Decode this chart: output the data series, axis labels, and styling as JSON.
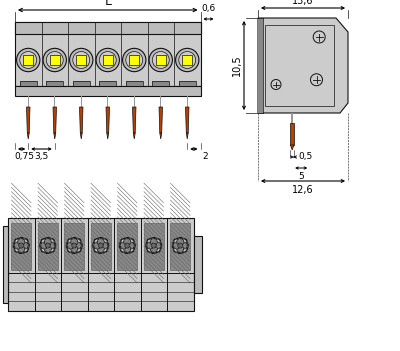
{
  "bg_color": "#ffffff",
  "gray_body": "#aaaaaa",
  "gray_light": "#cccccc",
  "gray_mid": "#bbbbbb",
  "gray_dark": "#888888",
  "gray_darker": "#666666",
  "yellow_fill": "#ffff00",
  "orange_pin": "#b84000",
  "black": "#111111",
  "n_poles": 7,
  "dim_L_label": "L",
  "dim_06": "0,6",
  "dim_136": "13,6",
  "dim_105": "10,5",
  "dim_075": "0,75",
  "dim_35": "3,5",
  "dim_2": "2",
  "dim_05": "0,5",
  "dim_5": "5",
  "dim_126": "12,6"
}
